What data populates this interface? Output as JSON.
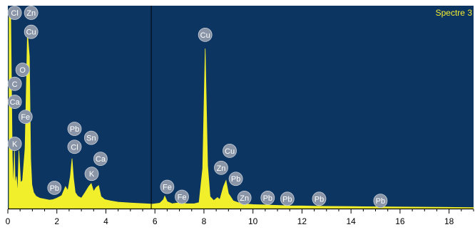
{
  "chart_data": {
    "type": "line",
    "title": "Spectre 3",
    "xlabel": "",
    "ylabel": "",
    "xlim": [
      0,
      19
    ],
    "x_ticks": [
      0,
      2,
      4,
      6,
      8,
      10,
      12,
      14,
      16,
      18
    ],
    "x_tick_labels": [
      "0",
      "2",
      "4",
      "6",
      "8",
      "10",
      "12",
      "14",
      "16",
      "18"
    ],
    "cursor_x": 5.85,
    "grid": false,
    "colors": {
      "background": "#0d3561",
      "spectrum": "#f1ef2c",
      "label_fill": "#8a96a8",
      "label_text": "#ffffff",
      "axis": "#000000"
    },
    "series": [
      {
        "x": [
          0.05,
          0.12,
          0.18,
          0.23,
          0.27,
          0.3,
          0.35,
          0.4,
          0.45,
          0.52,
          0.6,
          0.7,
          0.8,
          0.88,
          0.93,
          0.98,
          1.05,
          1.15,
          1.3,
          1.5,
          1.7,
          1.85,
          2.0,
          2.2,
          2.35,
          2.45,
          2.55,
          2.62,
          2.68,
          2.75,
          2.85,
          3.0,
          3.15,
          3.3,
          3.4,
          3.5,
          3.6,
          3.7,
          3.8,
          3.95,
          4.2,
          4.5,
          5.0,
          5.5,
          5.9,
          6.2,
          6.35,
          6.4,
          6.5,
          6.7,
          7.0,
          7.3,
          7.6,
          7.8,
          7.95,
          8.05,
          8.15,
          8.25,
          8.4,
          8.55,
          8.65,
          8.8,
          8.9,
          9.0,
          9.2,
          9.4,
          9.6,
          10.0,
          10.5,
          11.0,
          11.5,
          12.0,
          12.5,
          13.0,
          14.0,
          15.0,
          16.0,
          17.0,
          18.0,
          19.0
        ],
        "y": [
          1000,
          950,
          260,
          100,
          290,
          120,
          160,
          70,
          290,
          130,
          140,
          300,
          880,
          760,
          250,
          120,
          80,
          62,
          52,
          47,
          42,
          45,
          52,
          65,
          110,
          90,
          160,
          250,
          150,
          80,
          62,
          52,
          80,
          110,
          125,
          85,
          105,
          115,
          60,
          45,
          38,
          32,
          28,
          25,
          22,
          27,
          45,
          62,
          35,
          24,
          30,
          24,
          24,
          30,
          200,
          800,
          215,
          60,
          40,
          55,
          45,
          110,
          140,
          75,
          38,
          30,
          24,
          20,
          18,
          16,
          14,
          13,
          12,
          11,
          10,
          9,
          8,
          7,
          6,
          5
        ]
      }
    ],
    "peak_labels": [
      {
        "element": "Cl",
        "x": 0.28,
        "y": 1000
      },
      {
        "element": "Zn",
        "x": 0.95,
        "y": 1000
      },
      {
        "element": "Cu",
        "x": 0.95,
        "y": 905
      },
      {
        "element": "O",
        "x": 0.6,
        "y": 715
      },
      {
        "element": "C",
        "x": 0.28,
        "y": 645
      },
      {
        "element": "Ca",
        "x": 0.28,
        "y": 555
      },
      {
        "element": "Fe",
        "x": 0.72,
        "y": 480
      },
      {
        "element": "K",
        "x": 0.28,
        "y": 345
      },
      {
        "element": "Pb",
        "x": 1.9,
        "y": 125
      },
      {
        "element": "Pb",
        "x": 2.72,
        "y": 420
      },
      {
        "element": "Cl",
        "x": 2.72,
        "y": 330
      },
      {
        "element": "Sn",
        "x": 3.4,
        "y": 375
      },
      {
        "element": "Ca",
        "x": 3.78,
        "y": 270
      },
      {
        "element": "K",
        "x": 3.42,
        "y": 195
      },
      {
        "element": "Fe",
        "x": 6.5,
        "y": 130
      },
      {
        "element": "Fe",
        "x": 7.1,
        "y": 80
      },
      {
        "element": "Cu",
        "x": 8.05,
        "y": 890
      },
      {
        "element": "Cu",
        "x": 9.05,
        "y": 310
      },
      {
        "element": "Zn",
        "x": 8.7,
        "y": 225
      },
      {
        "element": "Pb",
        "x": 9.3,
        "y": 170
      },
      {
        "element": "Zn",
        "x": 9.65,
        "y": 75
      },
      {
        "element": "Pb",
        "x": 10.6,
        "y": 75
      },
      {
        "element": "Pb",
        "x": 11.4,
        "y": 70
      },
      {
        "element": "Pb",
        "x": 12.7,
        "y": 70
      },
      {
        "element": "Pb",
        "x": 15.2,
        "y": 60
      }
    ]
  }
}
